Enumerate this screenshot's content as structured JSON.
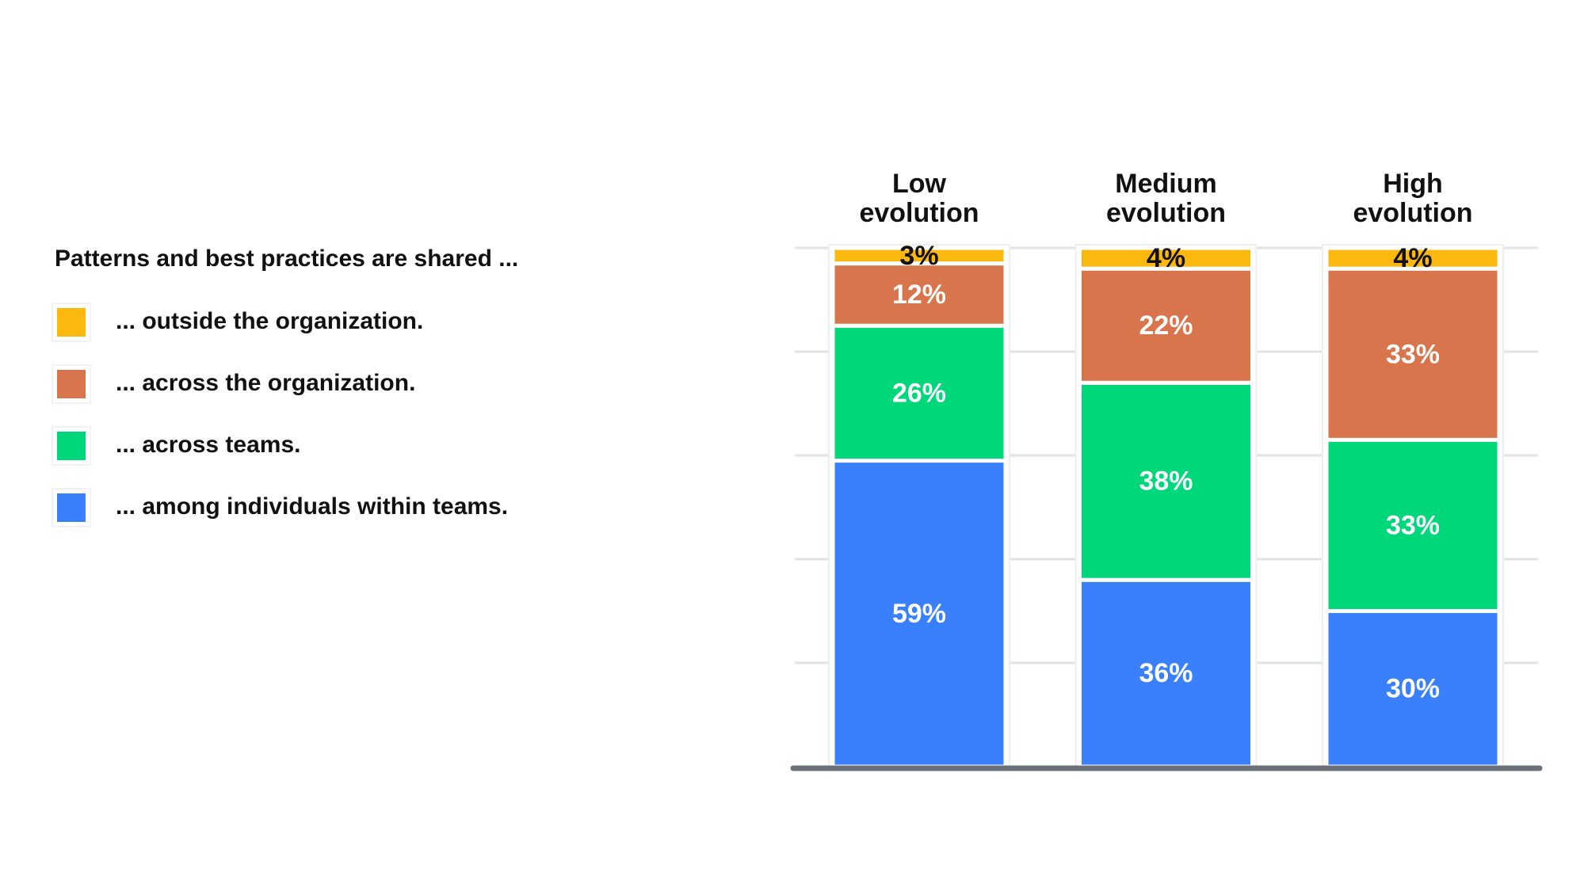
{
  "chart_data": {
    "type": "stacked_bar",
    "legend_title": "Patterns and best practices are shared ...",
    "categories": [
      "Low evolution",
      "Medium evolution",
      "High evolution"
    ],
    "series": [
      {
        "name": "... among individuals within teams.",
        "color": "#3a80fc",
        "values": [
          59,
          36,
          30
        ],
        "value_labels": [
          "59%",
          "36%",
          "30%"
        ]
      },
      {
        "name": "... across teams.",
        "color": "#00d67a",
        "values": [
          26,
          38,
          33
        ],
        "value_labels": [
          "26%",
          "38%",
          "33%"
        ]
      },
      {
        "name": "... across the organization.",
        "color": "#d9754c",
        "values": [
          12,
          22,
          33
        ],
        "value_labels": [
          "12%",
          "22%",
          "33%"
        ]
      },
      {
        "name": "... outside the organization.",
        "color": "#fbb80f",
        "values": [
          3,
          4,
          4
        ],
        "value_labels": [
          "3%",
          "4%",
          "4%"
        ]
      }
    ],
    "ylim": [
      0,
      100
    ],
    "yticks": [
      0,
      20,
      40,
      60,
      80,
      100
    ],
    "grid": true
  }
}
